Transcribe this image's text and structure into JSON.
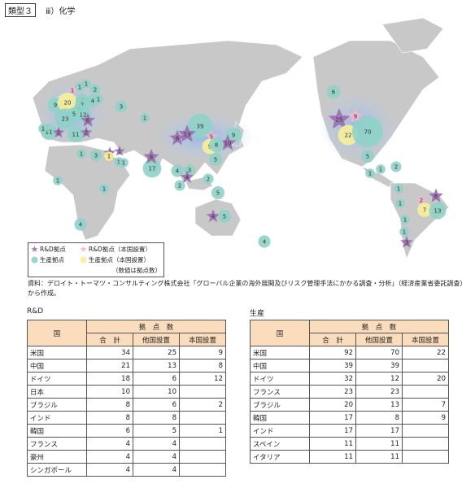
{
  "header": {
    "badge": "類型３",
    "title": "ⅲ）化学"
  },
  "map": {
    "markers": [
      {
        "kind": "rd",
        "value": 25
      },
      {
        "kind": "rd_home",
        "value": 9
      },
      {
        "kind": "prod_home",
        "value": 22
      },
      {
        "kind": "prod",
        "value": 70
      },
      {
        "kind": "prod",
        "value": 6
      },
      {
        "kind": "prod",
        "value": 5
      },
      {
        "kind": "prod",
        "value": 1
      },
      {
        "kind": "prod",
        "value": 1
      },
      {
        "kind": "prod",
        "value": 2
      },
      {
        "kind": "prod",
        "value": 1
      },
      {
        "kind": "prod",
        "value": 1
      },
      {
        "kind": "rd",
        "value": 6
      },
      {
        "kind": "rd_home",
        "value": 2
      },
      {
        "kind": "prod_home",
        "value": 7
      },
      {
        "kind": "prod",
        "value": 13
      },
      {
        "kind": "prod",
        "value": 1
      },
      {
        "kind": "rd",
        "value": 3
      },
      {
        "kind": "prod",
        "value": 1
      },
      {
        "kind": "prod",
        "value": 39
      },
      {
        "kind": "rd",
        "value": 13
      },
      {
        "kind": "rd",
        "value": 8
      },
      {
        "kind": "rd_home",
        "value": 5
      },
      {
        "kind": "prod",
        "value": 9
      },
      {
        "kind": "rd",
        "value": 10
      },
      {
        "kind": "prod_home",
        "value": 9
      },
      {
        "kind": "prod",
        "value": 8
      },
      {
        "kind": "prod",
        "value": 5
      },
      {
        "kind": "prod",
        "value": 3
      },
      {
        "kind": "prod",
        "value": 1
      },
      {
        "kind": "prod",
        "value": 17
      },
      {
        "kind": "rd",
        "value": 8
      },
      {
        "kind": "prod",
        "value": 4
      },
      {
        "kind": "prod",
        "value": 3
      },
      {
        "kind": "rd",
        "value": 4
      },
      {
        "kind": "prod",
        "value": 2
      },
      {
        "kind": "prod",
        "value": 2
      },
      {
        "kind": "prod",
        "value": 5
      },
      {
        "kind": "rd",
        "value": 4
      },
      {
        "kind": "prod",
        "value": 5
      },
      {
        "kind": "prod",
        "value": 4
      },
      {
        "kind": "prod",
        "value": 1
      },
      {
        "kind": "prod",
        "value": 1
      },
      {
        "kind": "prod",
        "value": 2
      },
      {
        "kind": "rd_home",
        "value": 1
      },
      {
        "kind": "prod",
        "value": 9
      },
      {
        "kind": "prod_home",
        "value": 20
      },
      {
        "kind": "prod",
        "value": 4
      },
      {
        "kind": "prod",
        "value": 1
      },
      {
        "kind": "prod",
        "value": 5
      },
      {
        "kind": "prod",
        "value": 7
      },
      {
        "kind": "prod",
        "value": 3
      },
      {
        "kind": "prod",
        "value": 12
      },
      {
        "kind": "prod",
        "value": 23
      },
      {
        "kind": "prod",
        "value": 5
      },
      {
        "kind": "rd",
        "value": 6
      },
      {
        "kind": "prod",
        "value": 11
      },
      {
        "kind": "rd",
        "value": 2
      },
      {
        "kind": "prod",
        "value": 11
      },
      {
        "kind": "rd",
        "value": 2
      },
      {
        "kind": "prod",
        "value": 1
      },
      {
        "kind": "prod",
        "value": 1
      },
      {
        "kind": "prod",
        "value": 3
      },
      {
        "kind": "rd",
        "value": 2
      },
      {
        "kind": "rd",
        "value": 1
      },
      {
        "kind": "prod_home",
        "value": 1
      },
      {
        "kind": "prod",
        "value": 1
      },
      {
        "kind": "prod",
        "value": 1
      },
      {
        "kind": "prod",
        "value": 1
      },
      {
        "kind": "prod",
        "value": 1
      },
      {
        "kind": "prod",
        "value": 4
      }
    ]
  },
  "legend": {
    "items": [
      {
        "kind": "rd",
        "label": "R&D拠点"
      },
      {
        "kind": "rd_home",
        "label": "R&D拠点（本国設置）"
      },
      {
        "kind": "prod",
        "label": "生産拠点"
      },
      {
        "kind": "prod_home",
        "label": "生産拠点（本国設置）"
      }
    ],
    "note": "（数値は拠点数）"
  },
  "source": "資料：デロイト・トーマツ・コンサルティング株式会社「グローバル企業の海外展開及びリスク管理手法にかかる調査・分析」（経済産業省委託調査）から作成。",
  "tables": [
    {
      "caption": "R&D",
      "head": {
        "country": "国",
        "group": "拠　点　数",
        "cols": [
          "合　計",
          "他国設置",
          "本国設置"
        ]
      },
      "rows": [
        [
          "米国",
          34,
          25,
          9
        ],
        [
          "中国",
          21,
          13,
          8
        ],
        [
          "ドイツ",
          18,
          6,
          12
        ],
        [
          "日本",
          10,
          10,
          null
        ],
        [
          "ブラジル",
          8,
          6,
          2
        ],
        [
          "インド",
          8,
          8,
          null
        ],
        [
          "韓国",
          6,
          5,
          1
        ],
        [
          "フランス",
          4,
          4,
          null
        ],
        [
          "豪州",
          4,
          4,
          null
        ],
        [
          "シンガポール",
          4,
          4,
          null
        ]
      ]
    },
    {
      "caption": "生産",
      "head": {
        "country": "国",
        "group": "拠　点　数",
        "cols": [
          "合　計",
          "他国設置",
          "本国設置"
        ]
      },
      "rows": [
        [
          "米国",
          92,
          70,
          22
        ],
        [
          "中国",
          39,
          39,
          null
        ],
        [
          "ドイツ",
          32,
          12,
          20
        ],
        [
          "フランス",
          23,
          23,
          null
        ],
        [
          "ブラジル",
          20,
          13,
          7
        ],
        [
          "韓国",
          17,
          8,
          9
        ],
        [
          "インド",
          17,
          17,
          null
        ],
        [
          "スペイン",
          11,
          11,
          null
        ],
        [
          "イタリア",
          11,
          11,
          null
        ]
      ]
    }
  ]
}
